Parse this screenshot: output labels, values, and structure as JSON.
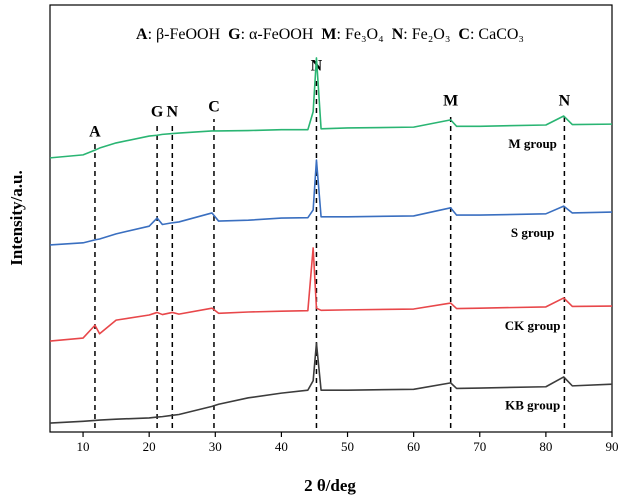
{
  "chart_data": {
    "type": "line",
    "legend_entries": [
      {
        "key": "A",
        "label": ": β-FeOOH"
      },
      {
        "key": "G",
        "label": ": α-FeOOH"
      },
      {
        "key": "M",
        "label": ": Fe₃O₄"
      },
      {
        "key": "N",
        "label": ": Fe₂O₃"
      },
      {
        "key": "C",
        "label": ": CaCO₃"
      }
    ],
    "x_label": "2 θ/deg",
    "y_label": "Intensity/a.u.",
    "xlim": [
      5,
      90
    ],
    "xticks": [
      10,
      20,
      30,
      40,
      50,
      60,
      70,
      80,
      90
    ],
    "ylim": [
      0,
      100
    ],
    "x": [
      5,
      10,
      11.8,
      12.5,
      15,
      20,
      21.2,
      22,
      23.5,
      24.5,
      29.5,
      30.5,
      35,
      40,
      44,
      44.8,
      45.3,
      46,
      50,
      60,
      65.6,
      66.5,
      70,
      80,
      82.7,
      84,
      90
    ],
    "series": [
      {
        "name": "KB group",
        "color": "#3c3c3c",
        "values": [
          2.1,
          2.5,
          2.7,
          2.8,
          3,
          3.3,
          3.5,
          3.6,
          3.9,
          4.1,
          6,
          6.5,
          8,
          9.1,
          9.8,
          12,
          20.8,
          9.8,
          9.8,
          10,
          11.5,
          10.2,
          10.3,
          10.6,
          12.9,
          10.8,
          11.2
        ]
      },
      {
        "name": "CK group",
        "color": "#e8474a",
        "values": [
          21.3,
          22,
          25,
          23,
          26.2,
          27.4,
          28,
          27.5,
          28,
          27.6,
          29,
          27.8,
          28.1,
          28.3,
          28.4,
          43.1,
          29,
          28.5,
          28.6,
          28.8,
          30.2,
          28.9,
          29,
          29.3,
          31.4,
          29.4,
          29.5
        ]
      },
      {
        "name": "S group",
        "color": "#3a6fc0",
        "values": [
          43.8,
          44.3,
          45,
          45.2,
          46.4,
          48.2,
          50.1,
          48.6,
          49,
          49.2,
          51.3,
          49.4,
          49.6,
          50.1,
          50.2,
          52,
          63.7,
          50.4,
          50.4,
          50.6,
          52.5,
          50.8,
          50.8,
          51.1,
          52.9,
          51.3,
          51.5
        ]
      },
      {
        "name": "M group",
        "color": "#2ab573",
        "values": [
          64.2,
          64.9,
          66,
          66.5,
          67.7,
          69.3,
          69.5,
          69.7,
          69.9,
          70,
          70.5,
          70.5,
          70.6,
          70.8,
          70.8,
          75,
          87.6,
          71,
          71.2,
          71.4,
          73.1,
          71.6,
          71.6,
          71.9,
          74,
          72,
          72.1
        ]
      }
    ],
    "annotations": [
      {
        "text": "A",
        "x": 11.8
      },
      {
        "text": "G",
        "x": 21.2
      },
      {
        "text": "N",
        "x": 23.5
      },
      {
        "text": "C",
        "x": 29.8
      },
      {
        "text": "N",
        "x": 45.3
      },
      {
        "text": "M",
        "x": 65.6
      },
      {
        "text": "N",
        "x": 82.8
      }
    ]
  }
}
